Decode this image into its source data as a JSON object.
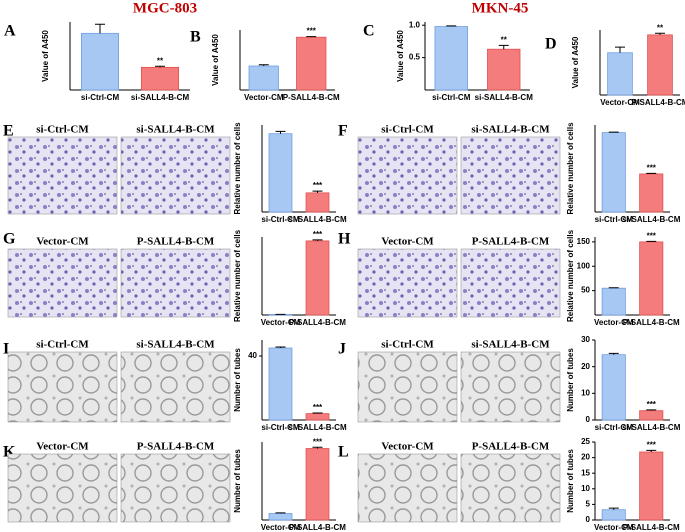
{
  "headers": [
    "MGC-803",
    "MKN-45"
  ],
  "chart_data": [
    {
      "type": "bar",
      "panel": "A",
      "ylabel": "Value of A450",
      "categories": [
        "si-Ctrl-CM",
        "si-SALL4-B-CM"
      ],
      "values": [
        0.5,
        0.2
      ],
      "errors": [
        0.08,
        0.01
      ],
      "colors": [
        "#a8c8f4",
        "#f47c7c"
      ],
      "annotation": "**",
      "ylim": [
        0,
        0.6
      ]
    },
    {
      "type": "bar",
      "panel": "B",
      "ylabel": "Value of A450",
      "categories": [
        "Vector-CM",
        "P-SALL4-B-CM"
      ],
      "values": [
        0.2,
        0.44
      ],
      "errors": [
        0.01,
        0.005
      ],
      "colors": [
        "#a8c8f4",
        "#f47c7c"
      ],
      "annotation": "***",
      "ylim": [
        0,
        0.5
      ]
    },
    {
      "type": "bar",
      "panel": "C",
      "ylabel": "Value of A450",
      "categories": [
        "si-Ctrl-CM",
        "si-SALL4-B-CM"
      ],
      "values": [
        0.98,
        0.63
      ],
      "errors": [
        0.01,
        0.06
      ],
      "colors": [
        "#a8c8f4",
        "#f47c7c"
      ],
      "annotation": "**",
      "ylim": [
        0,
        1.05
      ],
      "yticks": [
        0.5,
        {
          "value": 1,
          "label": "1.0"
        }
      ]
    },
    {
      "type": "bar",
      "panel": "D",
      "ylabel": "Value of A450",
      "categories": [
        "Vector-CM",
        "P-SALL4-B-CM"
      ],
      "values": [
        0.52,
        0.74
      ],
      "errors": [
        0.07,
        0.02
      ],
      "colors": [
        "#a8c8f4",
        "#f47c7c"
      ],
      "annotation": "**",
      "ylim": [
        0,
        0.8
      ]
    },
    {
      "type": "bar",
      "panel": "E",
      "image_labels": [
        "si-Ctrl-CM",
        "si-SALL4-B-CM"
      ],
      "ylabel": "Relative number of cells",
      "categories": [
        "si-Ctrl-CM",
        "si-SALL4-B-CM"
      ],
      "values": [
        135,
        33
      ],
      "errors": [
        4,
        3
      ],
      "colors": [
        "#a8c8f4",
        "#f47c7c"
      ],
      "annotation": "***",
      "ylim": [
        0,
        150
      ]
    },
    {
      "type": "bar",
      "panel": "F",
      "image_labels": [
        "si-Ctrl-CM",
        "si-SALL4-B-CM"
      ],
      "ylabel": "Relative number of cells",
      "categories": [
        "si-Ctrl-CM",
        "si-SALL4-B-CM"
      ],
      "values": [
        292,
        140
      ],
      "errors": [
        2,
        2
      ],
      "colors": [
        "#a8c8f4",
        "#f47c7c"
      ],
      "annotation": "***",
      "ylim": [
        0,
        320
      ]
    },
    {
      "type": "bar",
      "panel": "G",
      "image_labels": [
        "Vector-CM",
        "P-SALL4-B-CM"
      ],
      "ylabel": "Relative number of cells",
      "categories": [
        "Vector-CM",
        "P-SALL4-B-CM"
      ],
      "values": [
        2,
        285
      ],
      "errors": [
        0.5,
        4
      ],
      "colors": [
        "#a8c8f4",
        "#f47c7c"
      ],
      "annotation": "***",
      "ylim": [
        0,
        300
      ]
    },
    {
      "type": "bar",
      "panel": "H",
      "image_labels": [
        "Vector-CM",
        "P-SALL4-B-CM"
      ],
      "ylabel": "Relative number of cells",
      "categories": [
        "Vector-CM",
        "P-SALL4-B-CM"
      ],
      "values": [
        55,
        150
      ],
      "errors": [
        1,
        1
      ],
      "colors": [
        "#a8c8f4",
        "#f47c7c"
      ],
      "annotation": "***",
      "ylim": [
        0,
        160
      ],
      "yticks": [
        50,
        100,
        150
      ]
    },
    {
      "type": "bar",
      "panel": "I",
      "image_labels": [
        "si-Ctrl-CM",
        "si-SALL4-B-CM"
      ],
      "ylabel": "Number of tubes",
      "categories": [
        "si-Ctrl-CM",
        "si-SALL4-B-CM"
      ],
      "values": [
        45,
        4
      ],
      "errors": [
        0.6,
        0.4
      ],
      "colors": [
        "#a8c8f4",
        "#f47c7c"
      ],
      "annotation": "***",
      "ylim": [
        0,
        50
      ],
      "yticks": [
        40
      ]
    },
    {
      "type": "bar",
      "panel": "J",
      "image_labels": [
        "si-Ctrl-CM",
        "si-SALL4-B-CM"
      ],
      "ylabel": "Number of tubes",
      "categories": [
        "si-Ctrl-CM",
        "si-SALL4-B-CM"
      ],
      "values": [
        24.5,
        3.5
      ],
      "errors": [
        0.5,
        0.3
      ],
      "colors": [
        "#a8c8f4",
        "#f47c7c"
      ],
      "annotation": "***",
      "ylim": [
        0,
        30
      ],
      "yticks": [
        0,
        10,
        20,
        30
      ]
    },
    {
      "type": "bar",
      "panel": "K",
      "image_labels": [
        "Vector-CM",
        "P-SALL4-B-CM"
      ],
      "ylabel": "Number of tubes",
      "categories": [
        "Vector-CM",
        "P-SALL4-B-CM"
      ],
      "values": [
        5,
        55
      ],
      "errors": [
        0.5,
        1
      ],
      "colors": [
        "#a8c8f4",
        "#f47c7c"
      ],
      "annotation": "***",
      "ylim": [
        0,
        60
      ]
    },
    {
      "type": "bar",
      "panel": "L",
      "image_labels": [
        "Vector-CM",
        "P-SALL4-B-CM"
      ],
      "ylabel": "Number of tubes",
      "categories": [
        "Vector-CM",
        "P-SALL4-B-CM"
      ],
      "values": [
        3.3,
        21.8
      ],
      "errors": [
        0.5,
        0.5
      ],
      "colors": [
        "#a8c8f4",
        "#f47c7c"
      ],
      "annotation": "***",
      "ylim": [
        0,
        25
      ],
      "yticks": [
        0,
        5,
        10,
        15,
        20,
        25
      ]
    }
  ]
}
